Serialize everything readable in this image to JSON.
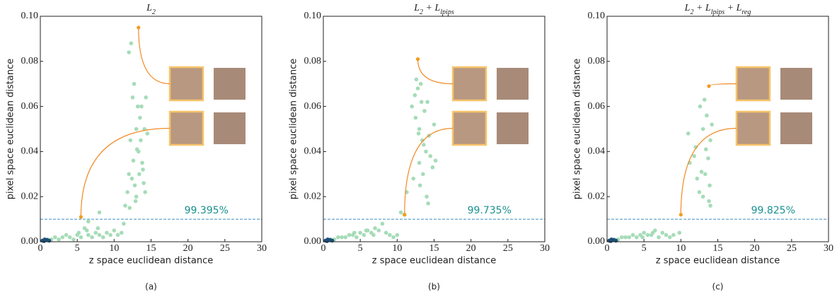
{
  "chart_data": [
    {
      "type": "scatter",
      "title_parts": [
        "L",
        "2"
      ],
      "caption": "(a)",
      "x_label": "z space euclidean distance",
      "y_label": "pixel space euclidean distance",
      "xlim": [
        0,
        30
      ],
      "xticks": [
        0,
        5,
        10,
        15,
        20,
        25,
        30
      ],
      "ylim": [
        0,
        0.1
      ],
      "yticks": [
        {
          "value": 0,
          "label": "0.00"
        },
        {
          "value": 0.02,
          "label": "0.02"
        },
        {
          "value": 0.04,
          "label": "0.04"
        },
        {
          "value": 0.06,
          "label": "0.06"
        },
        {
          "value": 0.08,
          "label": "0.08"
        },
        {
          "value": 0.1,
          "label": "0.10"
        }
      ],
      "threshold": 0.01,
      "threshold_color": "#3b8fc4",
      "annotation": "99.395%",
      "annotation_color": "#1a9090",
      "series": [
        {
          "color": "#a6dcb8",
          "x": [
            1,
            1.5,
            2,
            2.5,
            3,
            3.5,
            4,
            4.5,
            5,
            5.5,
            6,
            6.5,
            7,
            7.5,
            8,
            8.5,
            9,
            9.5,
            10,
            10.5,
            6.3,
            5.2,
            7.8,
            11,
            11.5,
            11.8,
            12,
            12,
            12.2,
            12.3,
            12.5,
            12.6,
            12.8,
            13,
            13,
            13.1,
            13.2,
            13.4,
            13.5,
            13.6,
            13.8,
            14,
            14.1,
            14.3,
            14.5,
            12.1,
            12.4,
            12.7,
            13.3,
            13.7,
            14.2,
            12.9,
            13.9,
            11.3,
            8,
            6.5
          ],
          "values": [
            0.001,
            0.001,
            0.002,
            0.001,
            0.002,
            0.003,
            0.002,
            0.001,
            0.003,
            0.002,
            0.006,
            0.003,
            0.002,
            0.004,
            0.003,
            0.002,
            0.004,
            0.003,
            0.005,
            0.003,
            0.005,
            0.004,
            0.006,
            0.004,
            0.016,
            0.022,
            0.084,
            0.03,
            0.045,
            0.088,
            0.064,
            0.036,
            0.025,
            0.05,
            0.02,
            0.041,
            0.06,
            0.03,
            0.055,
            0.045,
            0.035,
            0.026,
            0.05,
            0.064,
            0.048,
            0.015,
            0.028,
            0.07,
            0.04,
            0.06,
            0.022,
            0.018,
            0.032,
            0.008,
            0.013,
            0.009
          ]
        },
        {
          "color": "#1d4f7a",
          "x": [
            0.3,
            0.6,
            0.9,
            1.2,
            0.5
          ],
          "values": [
            0.0005,
            0.001,
            0.0008,
            0.0005,
            0.0003
          ]
        },
        {
          "color": "#f39c1f",
          "highlight": true,
          "x": [
            13.3,
            5.5
          ],
          "values": [
            0.095,
            0.011
          ]
        }
      ]
    },
    {
      "type": "scatter",
      "title_parts": [
        "L",
        "2",
        " + L",
        "lpips"
      ],
      "caption": "(b)",
      "x_label": "z space euclidean distance",
      "y_label": "pixel space euclidean distance",
      "xlim": [
        0,
        30
      ],
      "xticks": [
        0,
        5,
        10,
        15,
        20,
        25,
        30
      ],
      "ylim": [
        0,
        0.1
      ],
      "yticks": [
        {
          "value": 0,
          "label": "0.00"
        },
        {
          "value": 0.02,
          "label": "0.02"
        },
        {
          "value": 0.04,
          "label": "0.04"
        },
        {
          "value": 0.06,
          "label": "0.06"
        },
        {
          "value": 0.08,
          "label": "0.08"
        },
        {
          "value": 0.1,
          "label": "0.10"
        }
      ],
      "threshold": 0.01,
      "threshold_color": "#3b8fc4",
      "annotation": "99.735%",
      "annotation_color": "#1a9090",
      "series": [
        {
          "color": "#a6dcb8",
          "x": [
            1,
            1.5,
            2,
            2.5,
            3,
            3.5,
            4,
            4.5,
            5,
            5.5,
            6,
            6.5,
            7,
            7.5,
            8,
            8.5,
            9,
            9.5,
            10,
            4.2,
            5.8,
            6.8,
            10.5,
            11,
            11.3,
            12,
            12.2,
            12.5,
            12.8,
            13,
            13,
            13.2,
            13.4,
            13.5,
            13.7,
            13.9,
            14,
            14.1,
            14.3,
            14.5,
            15,
            12.4,
            12.6,
            13.1,
            13.6,
            14.2,
            14.8,
            15.2,
            12.9,
            13.3
          ],
          "values": [
            0.001,
            0.001,
            0.002,
            0.002,
            0.002,
            0.003,
            0.003,
            0.002,
            0.004,
            0.003,
            0.005,
            0.004,
            0.006,
            0.005,
            0.008,
            0.004,
            0.003,
            0.002,
            0.003,
            0.004,
            0.005,
            0.003,
            0.013,
            0.012,
            0.022,
            0.06,
            0.028,
            0.055,
            0.068,
            0.035,
            0.05,
            0.07,
            0.045,
            0.03,
            0.058,
            0.04,
            0.02,
            0.062,
            0.047,
            0.038,
            0.052,
            0.065,
            0.072,
            0.025,
            0.043,
            0.017,
            0.033,
            0.036,
            0.048,
            0.062
          ]
        },
        {
          "color": "#1d4f7a",
          "x": [
            0.3,
            0.6,
            0.9,
            1.2,
            0.5
          ],
          "values": [
            0.0005,
            0.001,
            0.0008,
            0.0005,
            0.0003
          ]
        },
        {
          "color": "#f39c1f",
          "highlight": true,
          "x": [
            12.8,
            11
          ],
          "values": [
            0.081,
            0.012
          ]
        }
      ]
    },
    {
      "type": "scatter",
      "title_parts": [
        "L",
        "2",
        " + L",
        "lpips",
        " + L",
        "reg"
      ],
      "caption": "(c)",
      "x_label": "z space euclidean distance",
      "y_label": "pixel space euclidean distance",
      "xlim": [
        0,
        30
      ],
      "xticks": [
        0,
        5,
        10,
        15,
        20,
        25,
        30
      ],
      "ylim": [
        0,
        0.1
      ],
      "yticks": [
        {
          "value": 0,
          "label": "0.00"
        },
        {
          "value": 0.02,
          "label": "0.02"
        },
        {
          "value": 0.04,
          "label": "0.04"
        },
        {
          "value": 0.06,
          "label": "0.06"
        },
        {
          "value": 0.08,
          "label": "0.08"
        },
        {
          "value": 0.1,
          "label": "0.10"
        }
      ],
      "threshold": 0.01,
      "threshold_color": "#3b8fc4",
      "annotation": "99.825%",
      "annotation_color": "#1a9090",
      "series": [
        {
          "color": "#a6dcb8",
          "x": [
            1,
            1.5,
            2,
            2.5,
            3,
            3.5,
            4,
            4.5,
            5,
            5.5,
            6,
            6.5,
            7,
            7.5,
            8,
            8.5,
            9,
            9.8,
            4.8,
            6.2,
            11,
            11.2,
            11.8,
            12,
            12.2,
            12.5,
            12.8,
            13,
            13,
            13.2,
            13.4,
            13.5,
            13.7,
            13.9,
            14,
            14,
            14.2,
            12.6,
            13.3,
            13.8
          ],
          "values": [
            0.001,
            0.001,
            0.002,
            0.002,
            0.002,
            0.003,
            0.002,
            0.003,
            0.004,
            0.003,
            0.003,
            0.005,
            0.002,
            0.004,
            0.003,
            0.002,
            0.003,
            0.004,
            0.002,
            0.004,
            0.048,
            0.035,
            0.038,
            0.042,
            0.028,
            0.022,
            0.031,
            0.05,
            0.02,
            0.063,
            0.041,
            0.056,
            0.037,
            0.025,
            0.045,
            0.016,
            0.052,
            0.06,
            0.03,
            0.018
          ]
        },
        {
          "color": "#1d4f7a",
          "x": [
            0.3,
            0.6,
            0.9,
            1.2,
            0.5
          ],
          "values": [
            0.0005,
            0.001,
            0.0008,
            0.0005,
            0.0003
          ]
        },
        {
          "color": "#f39c1f",
          "highlight": true,
          "x": [
            13.8,
            10
          ],
          "values": [
            0.069,
            0.012
          ]
        }
      ]
    }
  ]
}
